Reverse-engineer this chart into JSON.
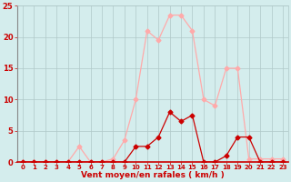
{
  "x": [
    0,
    1,
    2,
    3,
    4,
    5,
    6,
    7,
    8,
    9,
    10,
    11,
    12,
    13,
    14,
    15,
    16,
    17,
    18,
    19,
    20,
    21,
    22,
    23
  ],
  "y_moyen": [
    0,
    0,
    0,
    0,
    0,
    0,
    0,
    0,
    0,
    0,
    2.5,
    2.5,
    4,
    8,
    6.5,
    7.5,
    0,
    0,
    1,
    4,
    4,
    0,
    0,
    0
  ],
  "y_rafales": [
    0,
    0,
    0,
    0,
    0,
    2.5,
    0,
    0,
    0.5,
    3.5,
    10,
    21,
    19.5,
    23.5,
    23.5,
    21,
    10,
    9,
    15,
    15,
    0.5,
    0.5,
    0.5,
    0.5
  ],
  "xlabel": "Vent moyen/en rafales ( km/h )",
  "ylim": [
    0,
    25
  ],
  "xlim": [
    -0.5,
    23.5
  ],
  "yticks": [
    0,
    5,
    10,
    15,
    20,
    25
  ],
  "xticks": [
    0,
    1,
    2,
    3,
    4,
    5,
    6,
    7,
    8,
    9,
    10,
    11,
    12,
    13,
    14,
    15,
    16,
    17,
    18,
    19,
    20,
    21,
    22,
    23
  ],
  "color_moyen": "#cc0000",
  "color_rafales": "#ffaaaa",
  "bg_color": "#d4eded",
  "grid_color": "#b0c8c8",
  "label_color": "#cc0000",
  "tick_label_size": 5,
  "ylabel_size": 6
}
